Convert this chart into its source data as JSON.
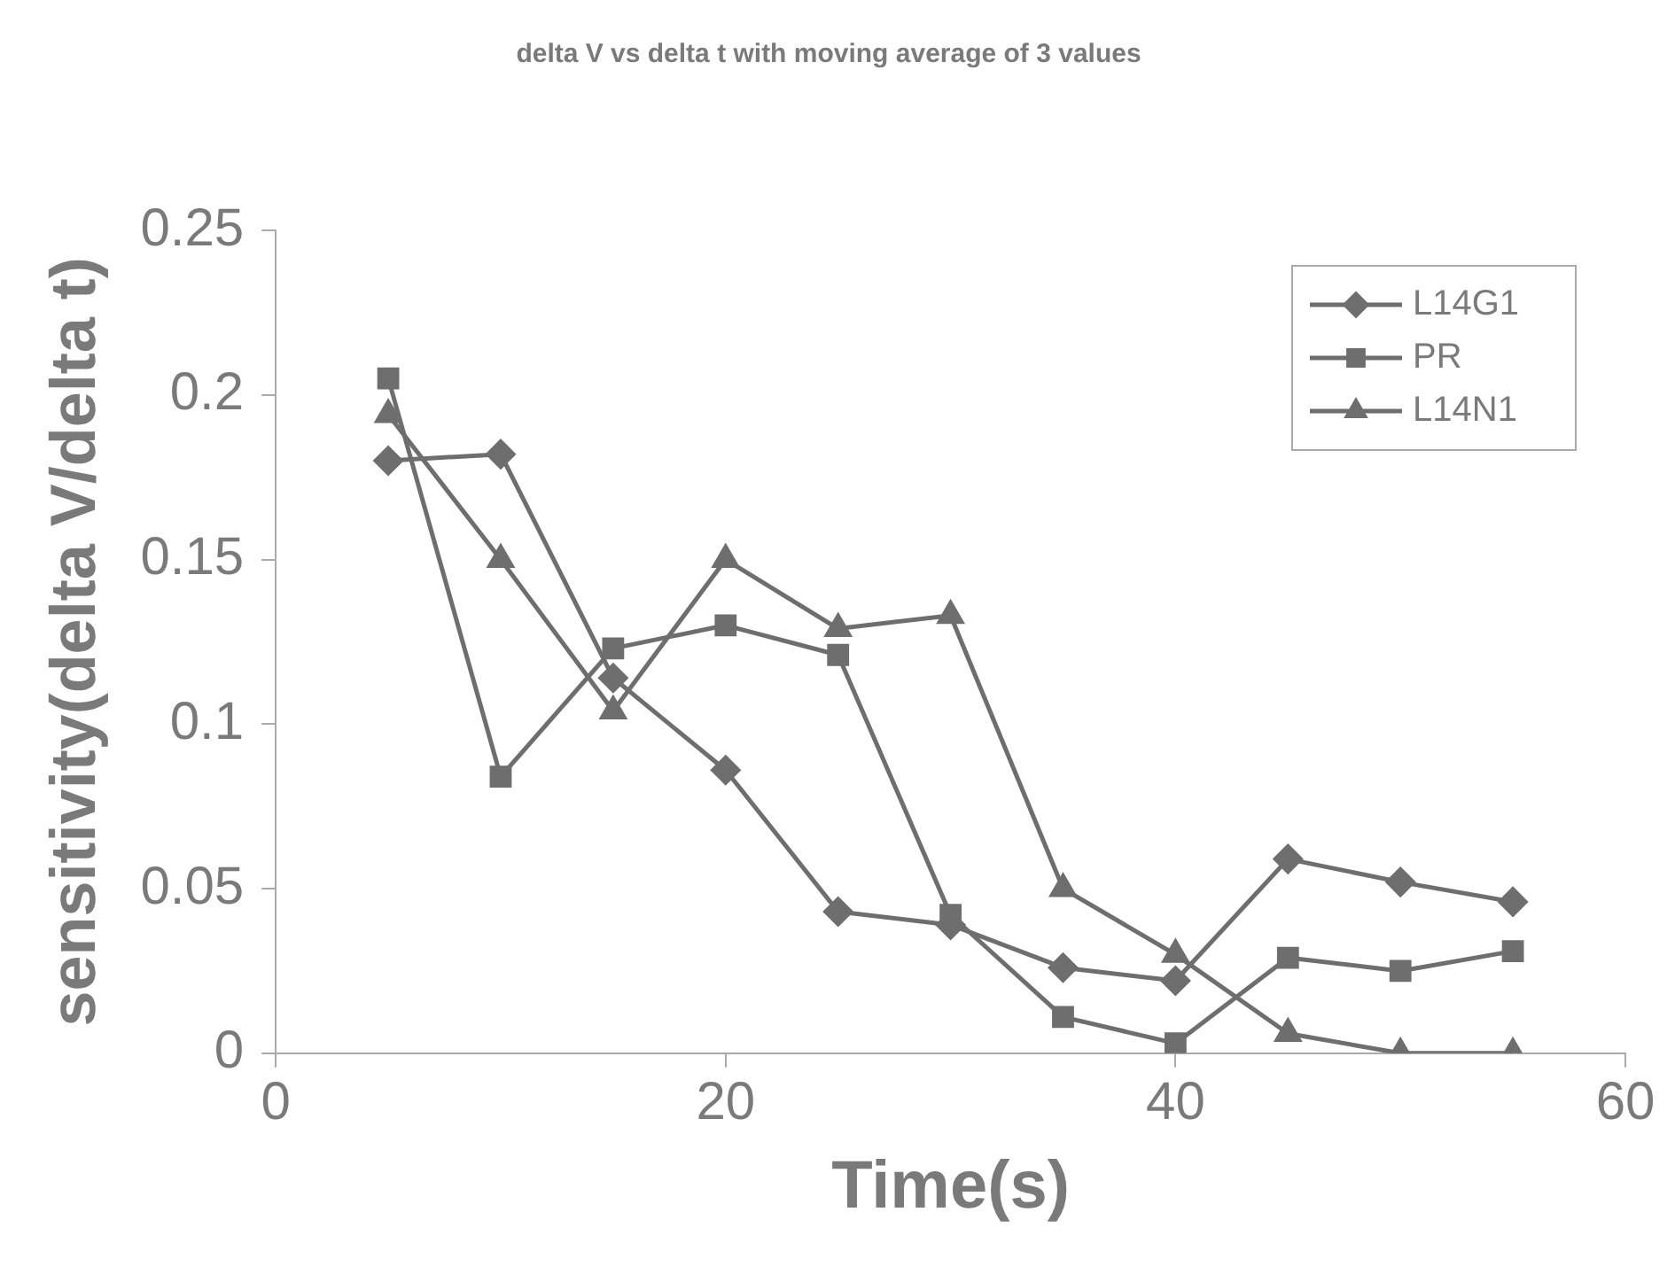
{
  "chart_data": {
    "type": "line",
    "title": "delta V vs delta t with moving average of 3 values",
    "xlabel": "Time(s)",
    "ylabel": "sensitivity(delta V/delta t)",
    "x": [
      5,
      10,
      15,
      20,
      25,
      30,
      35,
      40,
      45,
      50,
      55
    ],
    "series": [
      {
        "name": "L14G1",
        "color": "#6e6e6e",
        "marker": "diamond",
        "values": [
          0.18,
          0.182,
          0.114,
          0.086,
          0.043,
          0.039,
          0.026,
          0.022,
          0.059,
          0.052,
          0.046
        ]
      },
      {
        "name": "PR",
        "color": "#6e6e6e",
        "marker": "square",
        "values": [
          0.205,
          0.084,
          0.123,
          0.13,
          0.121,
          0.042,
          0.011,
          0.003,
          0.029,
          0.025,
          0.031
        ]
      },
      {
        "name": "L14N1",
        "color": "#6e6e6e",
        "marker": "triangle",
        "values": [
          0.194,
          0.15,
          0.104,
          0.15,
          0.129,
          0.133,
          0.05,
          0.03,
          0.006,
          0,
          0
        ]
      }
    ],
    "xlim": [
      0,
      60
    ],
    "xticks": [
      0,
      20,
      40,
      60
    ],
    "ylim": [
      0,
      0.25
    ],
    "yticks": [
      0,
      0.05,
      0.1,
      0.15,
      0.2,
      0.25
    ],
    "grid": false,
    "legend": "top right",
    "line_style": "solid"
  }
}
